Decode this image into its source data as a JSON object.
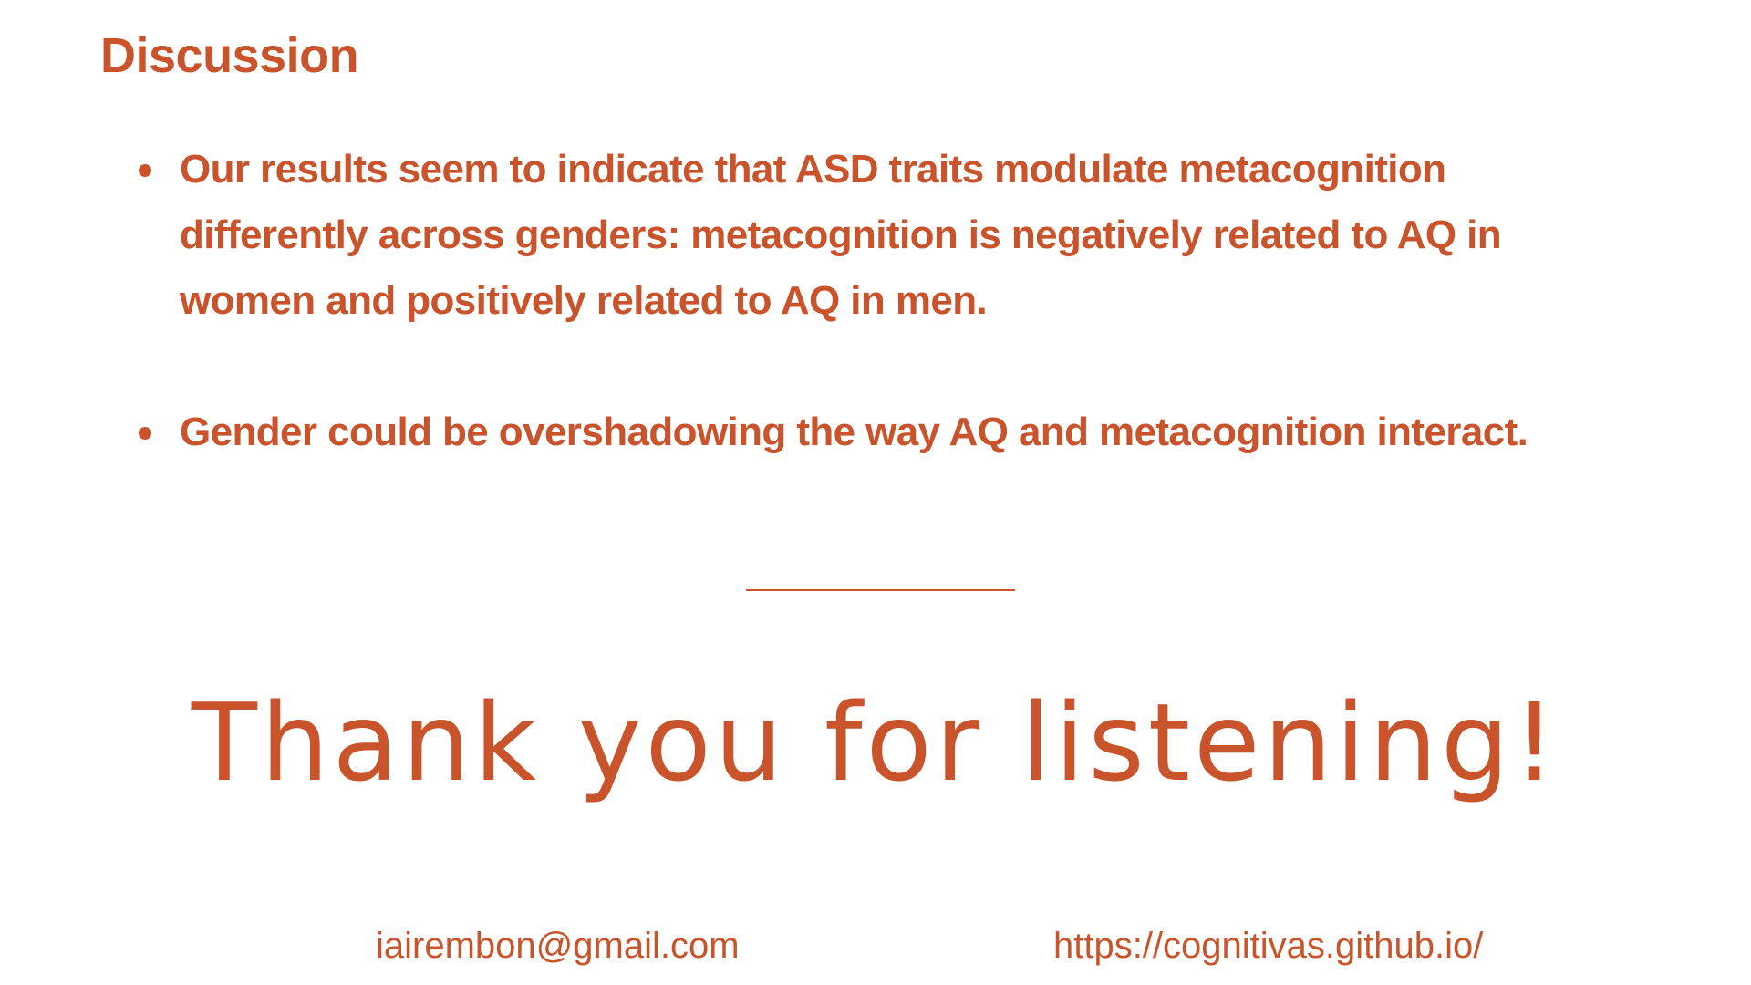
{
  "slide": {
    "title": "Discussion",
    "bullets": [
      "Our results seem to indicate that ASD traits modulate metacognition differently across genders: metacognition is negatively related to AQ in women and positively related to AQ in men.",
      "Gender could be overshadowing the way AQ and metacognition interact."
    ],
    "closing": "Thank you for listening!",
    "contact": {
      "email": "iairembon@gmail.com",
      "website": "https://cognitivas.github.io/"
    }
  },
  "colors": {
    "accent": "#c9542c",
    "background": "#ffffff"
  }
}
